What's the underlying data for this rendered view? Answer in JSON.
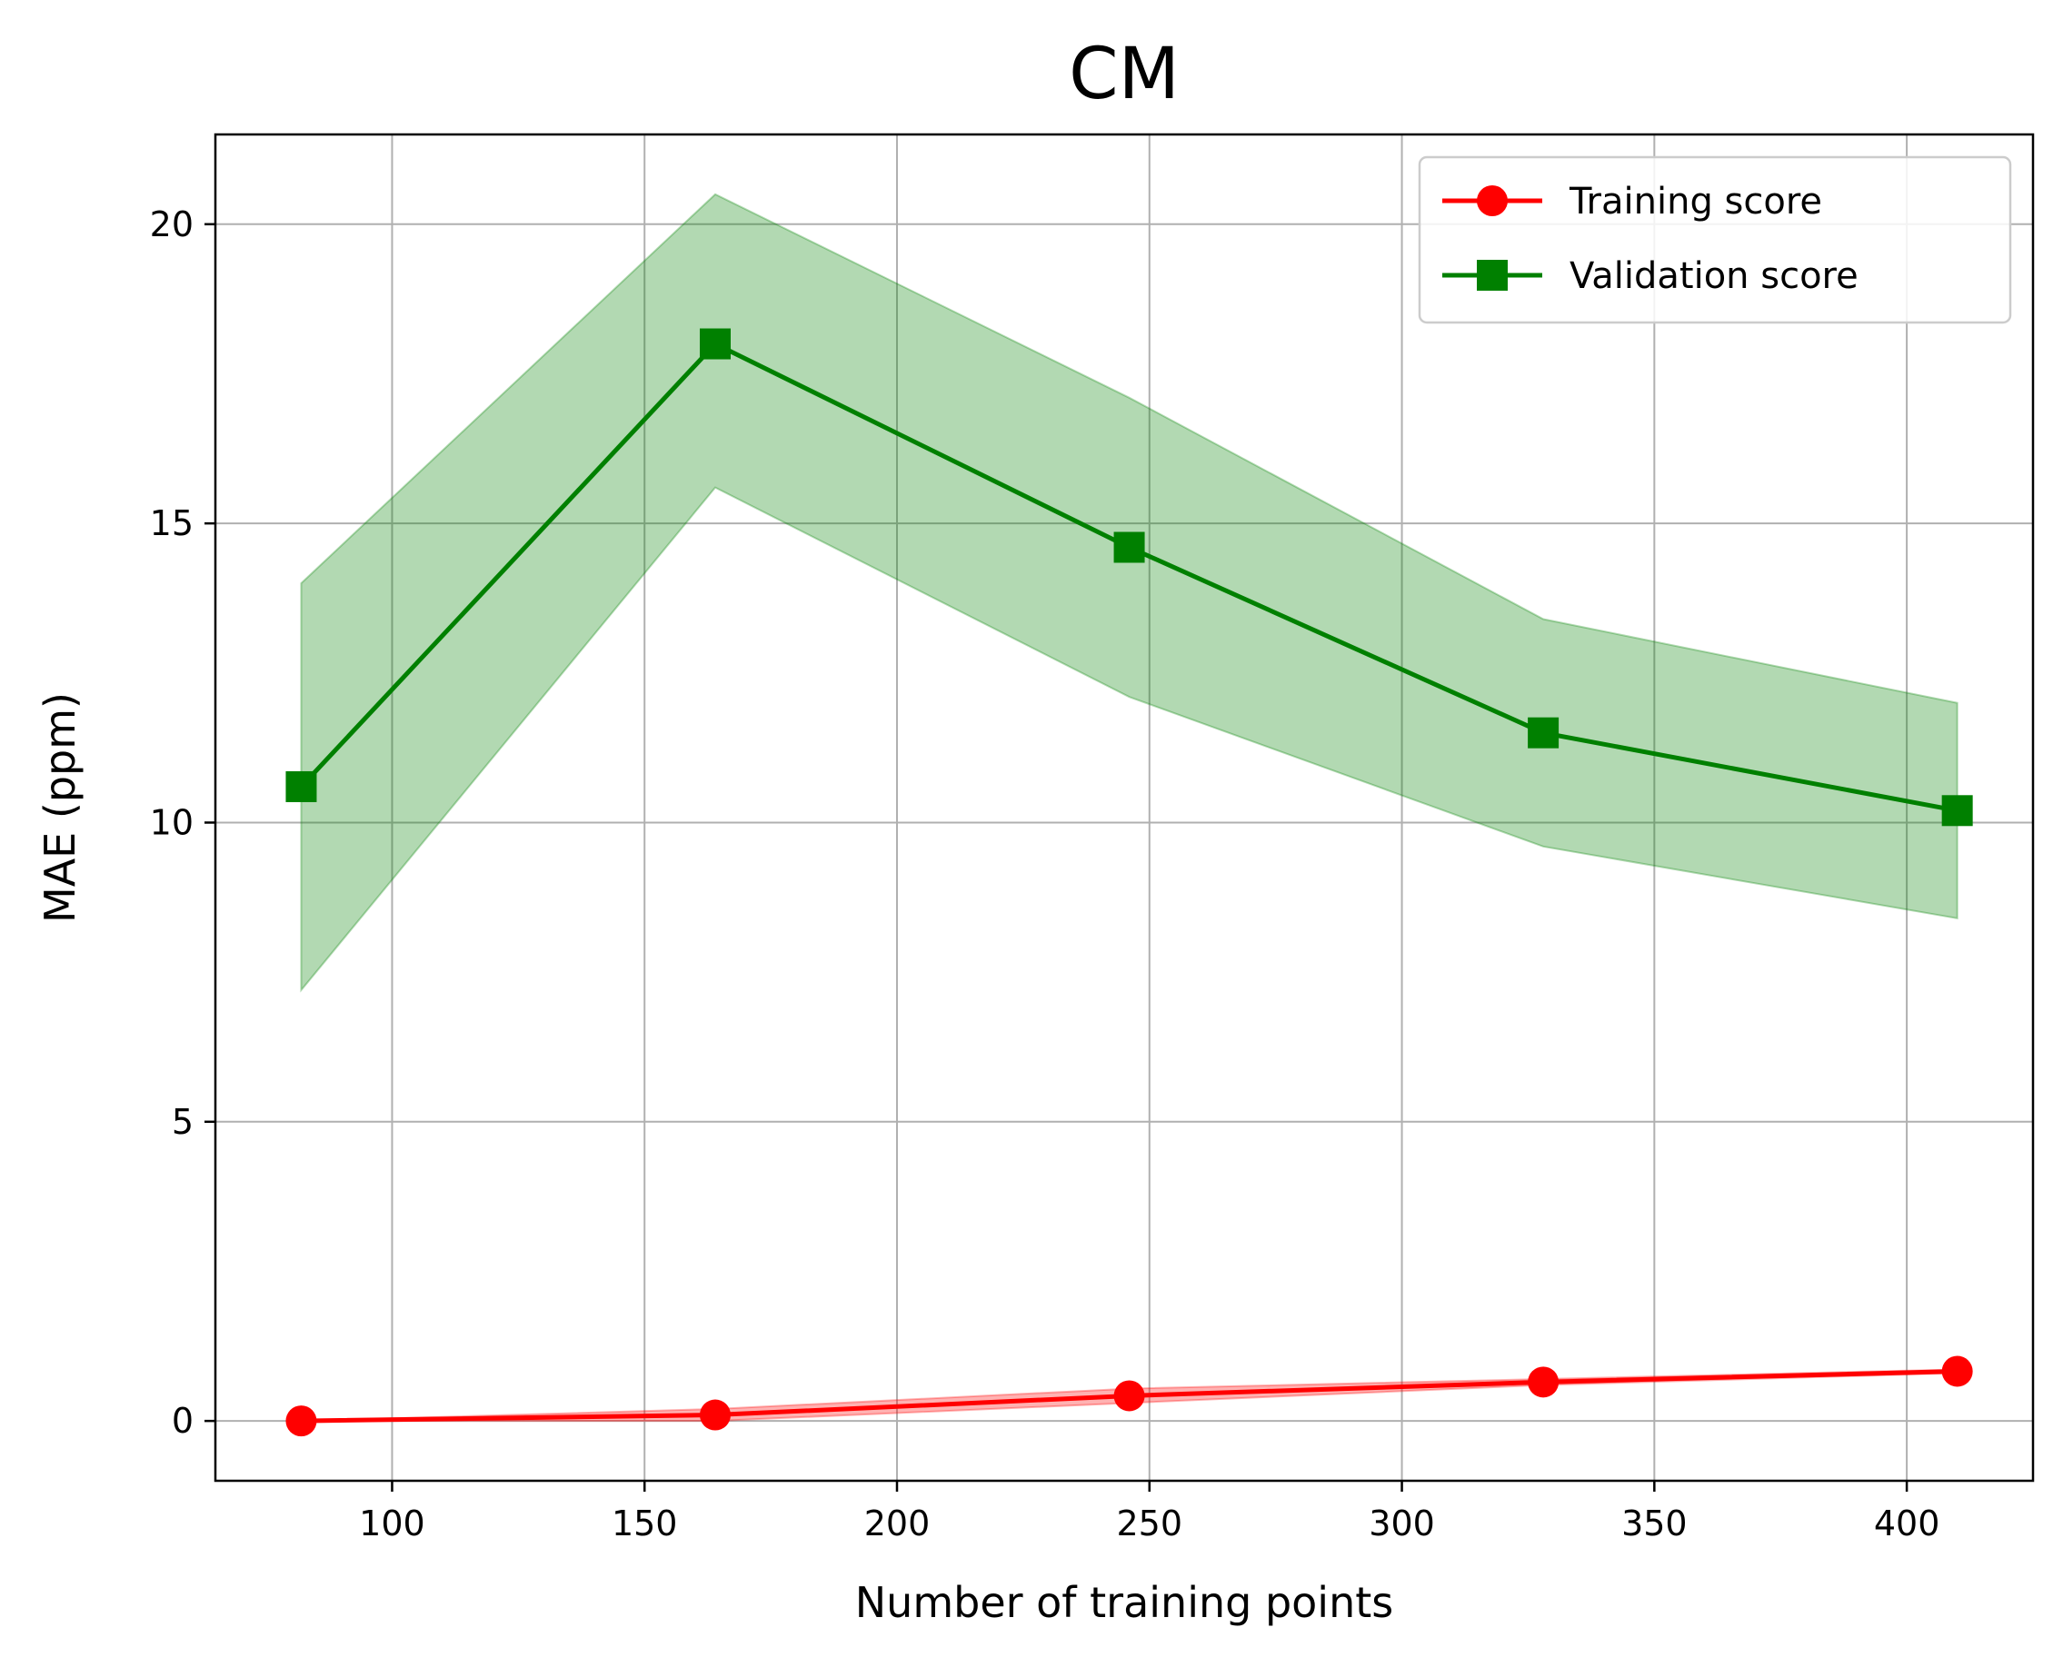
{
  "chart_data": {
    "type": "line",
    "title": "CM",
    "xlabel": "Number of training points",
    "ylabel": "MAE (ppm)",
    "xlim": [
      65,
      425
    ],
    "ylim": [
      -1,
      21.5
    ],
    "xticks": [
      100,
      150,
      200,
      250,
      300,
      350,
      400
    ],
    "yticks": [
      0,
      5,
      10,
      15,
      20
    ],
    "grid": true,
    "legend_position": "top-right",
    "x": [
      82,
      164,
      246,
      328,
      410
    ],
    "series": [
      {
        "name": "Training score",
        "color": "#ff0000",
        "marker": "circle",
        "values": [
          0.0,
          0.1,
          0.42,
          0.65,
          0.83
        ],
        "band_lower": [
          0.0,
          0.0,
          0.3,
          0.6,
          0.8
        ],
        "band_upper": [
          0.0,
          0.2,
          0.54,
          0.7,
          0.86
        ]
      },
      {
        "name": "Validation score",
        "color": "#008000",
        "marker": "square",
        "values": [
          10.6,
          18.0,
          14.6,
          11.5,
          10.2
        ],
        "band_lower": [
          7.2,
          15.6,
          12.1,
          9.6,
          8.4
        ],
        "band_upper": [
          14.0,
          20.5,
          17.1,
          13.4,
          12.0
        ]
      }
    ]
  }
}
